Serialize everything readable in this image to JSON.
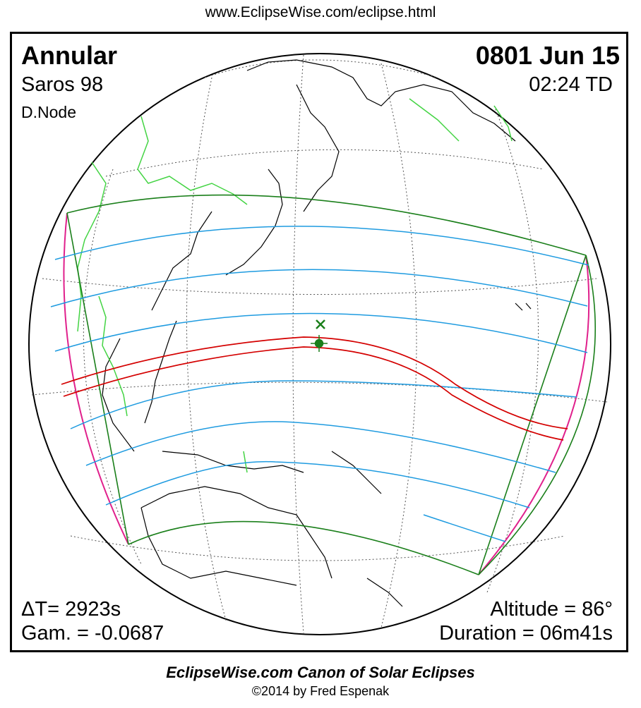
{
  "header": {
    "url": "www.EclipseWise.com/eclipse.html"
  },
  "eclipse": {
    "type": "Annular",
    "date": "0801 Jun 15",
    "saros": "Saros  98",
    "time": "02:24 TD",
    "node": "D.Node",
    "delta_t": "ΔT=   2923s",
    "gamma": "Gam. = -0.0687",
    "altitude": "Altitude = 86°",
    "duration": "Duration = 06m41s"
  },
  "footer": {
    "title": "EclipseWise.com Canon of Solar Eclipses",
    "copyright": "©2014 by Fred Espenak"
  },
  "colors": {
    "central_path": "#d40000",
    "penumbral_limits": "#1a7f1a",
    "magnitude_lines": "#1e9be0",
    "rise_set_curves": "#e0208c",
    "borders": "#44d444"
  }
}
